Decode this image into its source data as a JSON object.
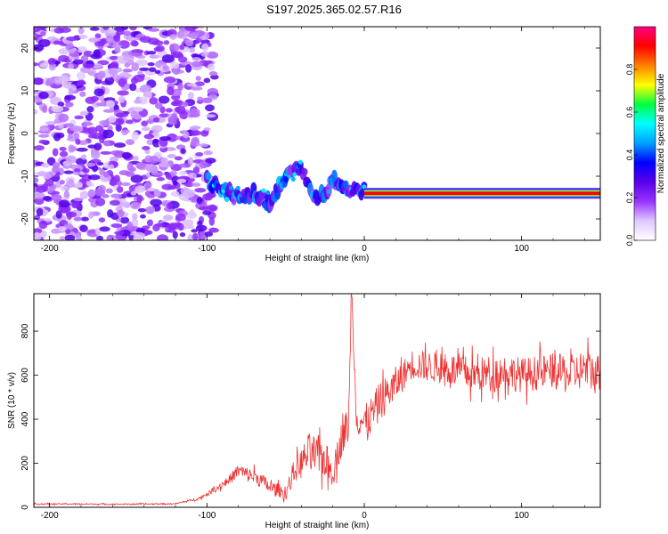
{
  "title": "S197.2025.365.02.57.R16",
  "colors": {
    "snr_line": "#ee3333",
    "colormap": [
      "#ffffff",
      "#e0c8ff",
      "#9933ff",
      "#5a00e8",
      "#0000ff",
      "#00a0ff",
      "#00ffff",
      "#00ff40",
      "#ffff00",
      "#ff8000",
      "#ff0000",
      "#ff0080"
    ]
  },
  "chart_data": [
    {
      "type": "heatmap",
      "name": "spectrogram",
      "xlabel": "Height of straight line (km)",
      "ylabel": "Frequency (Hz)",
      "xlim": [
        -210,
        150
      ],
      "ylim": [
        -25,
        25
      ],
      "xticks": [
        -200,
        -100,
        0,
        100
      ],
      "xtick_labels": [
        "-200",
        "-100",
        "0",
        "100"
      ],
      "yticks": [
        -20,
        -10,
        0,
        10,
        20
      ],
      "ytick_labels": [
        "-20",
        "-10",
        "0",
        "10",
        "20"
      ],
      "colorbar": {
        "label": "Normalized spectral amplitude",
        "range": [
          0,
          1
        ],
        "ticks": [
          0.0,
          0.2,
          0.4,
          0.6,
          0.8
        ],
        "tick_labels": [
          "0.0",
          "0.2",
          "0.4",
          "0.6",
          "0.8"
        ]
      },
      "regions": [
        {
          "description": "diffuse noise",
          "x_range": [
            -210,
            -95
          ],
          "y_range": [
            -25,
            25
          ],
          "amplitude": 0.1
        },
        {
          "description": "emerging signal",
          "x": [
            -100,
            -90,
            -80,
            -70,
            -60,
            -50,
            -40,
            -30,
            -20,
            -10,
            0
          ],
          "freq": [
            -11,
            -13,
            -15,
            -14,
            -16,
            -10,
            -8,
            -16,
            -11,
            -13,
            -13
          ],
          "amplitude": 0.35
        },
        {
          "description": "steady tone",
          "x_range": [
            0,
            150
          ],
          "freq": -14,
          "amplitude": 0.92
        }
      ]
    },
    {
      "type": "line",
      "name": "snr",
      "xlabel": "Height of straight line (km)",
      "ylabel": "SNR (10 * v/v)",
      "xlim": [
        -210,
        150
      ],
      "ylim": [
        0,
        970
      ],
      "xticks": [
        -200,
        -100,
        0,
        100
      ],
      "xtick_labels": [
        "-200",
        "-100",
        "0",
        "100"
      ],
      "yticks": [
        0,
        200,
        400,
        600,
        800
      ],
      "ytick_labels": [
        "0",
        "200",
        "400",
        "600",
        "800"
      ],
      "series": [
        {
          "name": "SNR",
          "x": [
            -210,
            -180,
            -150,
            -120,
            -105,
            -95,
            -85,
            -80,
            -75,
            -70,
            -65,
            -60,
            -55,
            -50,
            -45,
            -40,
            -35,
            -30,
            -25,
            -20,
            -15,
            -10,
            -8,
            -5,
            0,
            5,
            10,
            15,
            20,
            25,
            30,
            40,
            50,
            60,
            70,
            80,
            90,
            100,
            110,
            120,
            130,
            140,
            150
          ],
          "y": [
            15,
            15,
            14,
            16,
            40,
            80,
            130,
            170,
            150,
            140,
            120,
            90,
            80,
            60,
            160,
            200,
            250,
            230,
            220,
            150,
            300,
            380,
            960,
            420,
            380,
            420,
            480,
            520,
            560,
            600,
            650,
            640,
            630,
            620,
            600,
            610,
            620,
            600,
            610,
            620,
            600,
            630,
            600
          ],
          "noise": [
            3,
            3,
            3,
            3,
            6,
            12,
            25,
            30,
            35,
            35,
            35,
            30,
            30,
            30,
            50,
            70,
            90,
            90,
            90,
            60,
            80,
            90,
            10,
            90,
            80,
            90,
            90,
            80,
            80,
            70,
            70,
            70,
            70,
            80,
            80,
            80,
            80,
            80,
            80,
            80,
            90,
            90,
            100
          ]
        }
      ]
    }
  ]
}
